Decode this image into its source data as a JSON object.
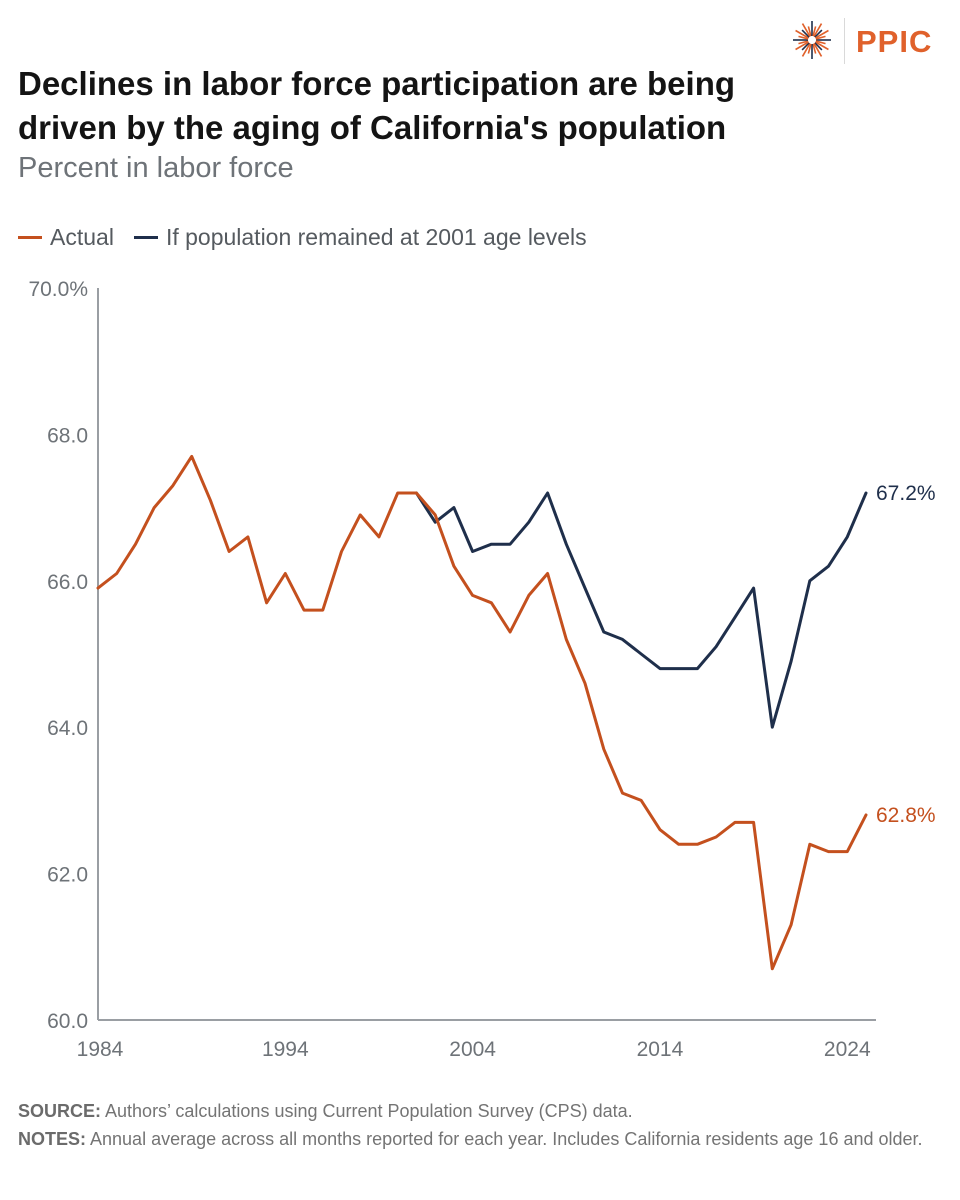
{
  "header": {
    "logo_text": "PPIC",
    "title": "Declines in labor force participation are being driven by the aging of California's population",
    "subtitle": "Percent in labor force"
  },
  "colors": {
    "actual": "#c4501e",
    "counterfactual": "#1f2f4b",
    "brand": "#e0612b",
    "axis": "#9a9ea3"
  },
  "legend": [
    {
      "label": "Actual",
      "color": "#c4501e"
    },
    {
      "label": "If population remained at 2001 age levels",
      "color": "#1f2f4b"
    }
  ],
  "chart_data": {
    "type": "line",
    "title": "Declines in labor force participation are being driven by the aging of California's population",
    "subtitle": "Percent in labor force",
    "xlabel": "",
    "ylabel": "",
    "xlim": [
      1984,
      2025
    ],
    "ylim": [
      60,
      70
    ],
    "x_ticks": [
      {
        "value": 1984,
        "label": "1984"
      },
      {
        "value": 1994,
        "label": "1994"
      },
      {
        "value": 2004,
        "label": "2004"
      },
      {
        "value": 2014,
        "label": "2014"
      },
      {
        "value": 2024,
        "label": "2024"
      }
    ],
    "y_ticks": [
      {
        "value": 70,
        "label": "70.0%"
      },
      {
        "value": 68,
        "label": "68.0"
      },
      {
        "value": 66,
        "label": "66.0"
      },
      {
        "value": 64,
        "label": "64.0"
      },
      {
        "value": 62,
        "label": "62.0"
      },
      {
        "value": 60,
        "label": "60.0"
      }
    ],
    "grid": false,
    "legend_position": "top-left",
    "series": [
      {
        "name": "Actual",
        "color": "#c4501e",
        "end_label": "62.8%",
        "x": [
          1984,
          1985,
          1986,
          1987,
          1988,
          1989,
          1990,
          1991,
          1992,
          1993,
          1994,
          1995,
          1996,
          1997,
          1998,
          1999,
          2000,
          2001,
          2002,
          2003,
          2004,
          2005,
          2006,
          2007,
          2008,
          2009,
          2010,
          2011,
          2012,
          2013,
          2014,
          2015,
          2016,
          2017,
          2018,
          2019,
          2020,
          2021,
          2022,
          2023,
          2024,
          2025
        ],
        "y": [
          65.9,
          66.1,
          66.5,
          67.0,
          67.3,
          67.7,
          67.1,
          66.4,
          66.6,
          65.7,
          66.1,
          65.6,
          65.6,
          66.4,
          66.9,
          66.6,
          67.2,
          67.2,
          66.9,
          66.2,
          65.8,
          65.7,
          65.3,
          65.8,
          66.1,
          65.2,
          64.6,
          63.7,
          63.1,
          63.0,
          62.6,
          62.4,
          62.4,
          62.5,
          62.7,
          62.7,
          60.7,
          61.3,
          62.4,
          62.3,
          62.3,
          62.8
        ]
      },
      {
        "name": "If population remained at 2001 age levels",
        "color": "#1f2f4b",
        "end_label": "67.2%",
        "x": [
          2001,
          2002,
          2003,
          2004,
          2005,
          2006,
          2007,
          2008,
          2009,
          2010,
          2011,
          2012,
          2013,
          2014,
          2015,
          2016,
          2017,
          2018,
          2019,
          2020,
          2021,
          2022,
          2023,
          2024,
          2025
        ],
        "y": [
          67.2,
          66.8,
          67.0,
          66.4,
          66.5,
          66.5,
          66.8,
          67.2,
          66.5,
          65.9,
          65.3,
          65.2,
          65.0,
          64.8,
          64.8,
          64.8,
          65.1,
          65.5,
          65.9,
          64.0,
          64.9,
          66.0,
          66.2,
          66.6,
          67.2
        ]
      }
    ]
  },
  "footer": {
    "source_label": "SOURCE:",
    "source_text": " Authors’ calculations using Current Population Survey (CPS) data.",
    "notes_label": "NOTES:",
    "notes_text": " Annual average across all months reported for each year. Includes California residents age 16 and older."
  }
}
